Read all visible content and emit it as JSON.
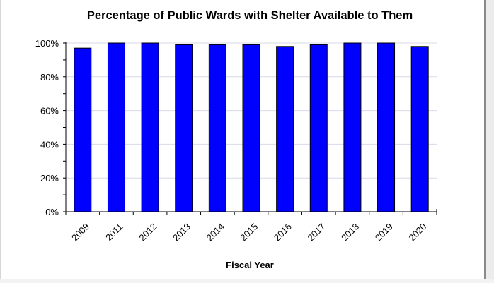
{
  "chart_data": {
    "type": "bar",
    "title": "Percentage of Public Wards with Shelter Available to Them",
    "xlabel": "Fiscal Year",
    "ylabel": "",
    "categories": [
      "2009",
      "2011",
      "2012",
      "2013",
      "2014",
      "2015",
      "2016",
      "2017",
      "2018",
      "2019",
      "2020"
    ],
    "values": [
      97,
      100,
      100,
      99,
      99,
      99,
      98,
      99,
      100,
      100,
      98
    ],
    "ylim": [
      0,
      100
    ],
    "yticks": [
      {
        "value": 0,
        "label": "0%"
      },
      {
        "value": 20,
        "label": "20%"
      },
      {
        "value": 40,
        "label": "40%"
      },
      {
        "value": 60,
        "label": "60%"
      },
      {
        "value": 80,
        "label": "80%"
      },
      {
        "value": 100,
        "label": "100%"
      }
    ],
    "grid": true,
    "bar_color": "#0000ff",
    "grid_color": "#d9d9ea"
  }
}
